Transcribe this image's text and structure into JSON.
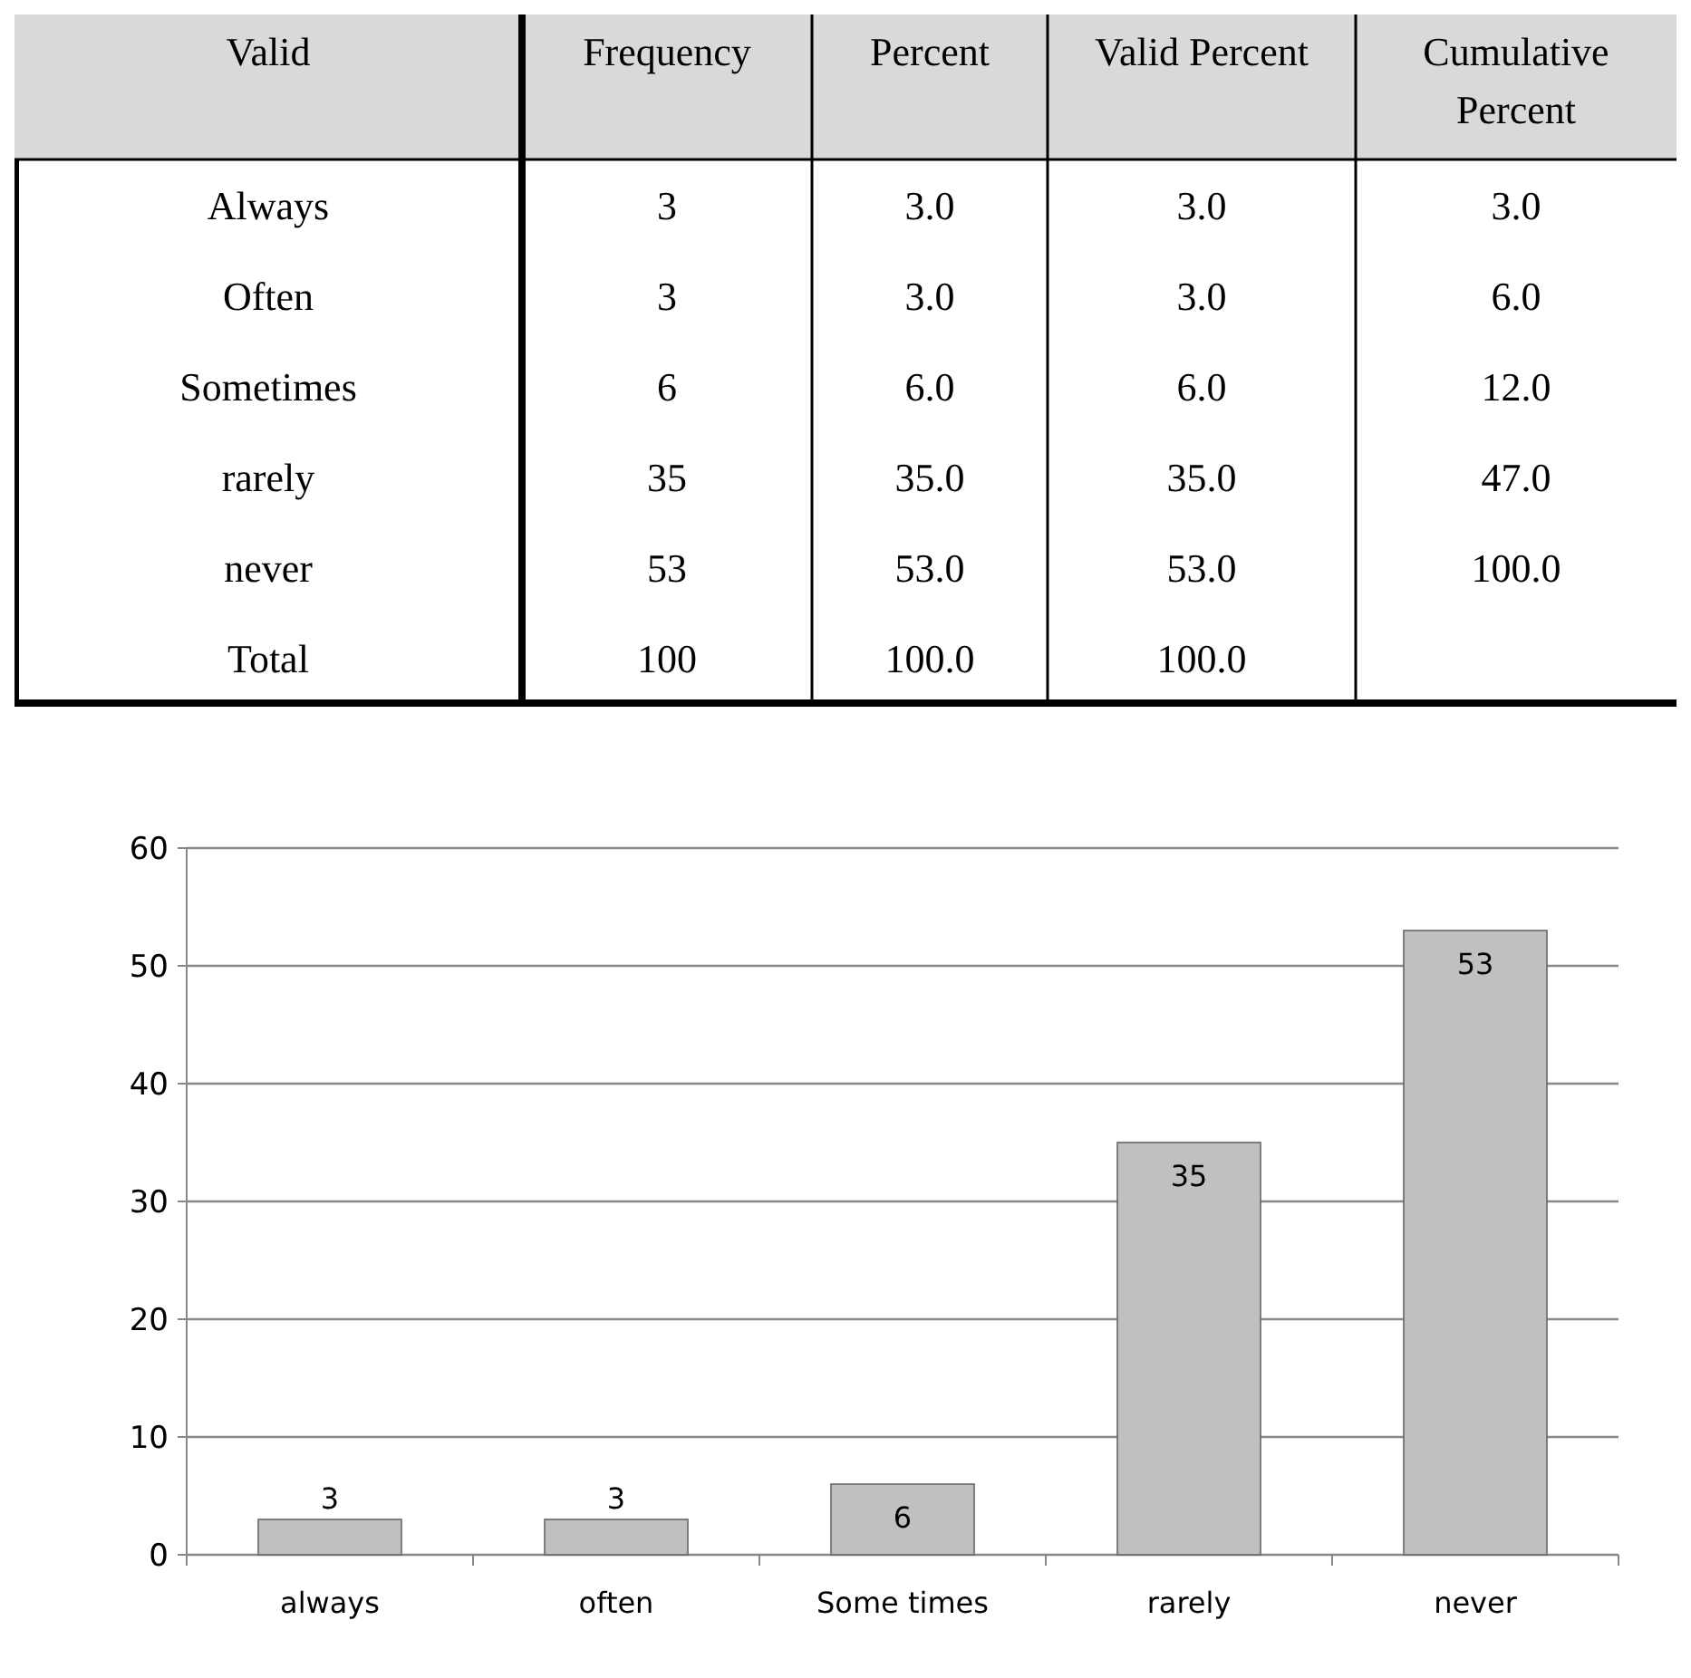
{
  "chart_data": [
    {
      "type": "other",
      "ylabel": "Valid",
      "categories": [
        "Frequency",
        "Percent",
        "Valid Percent",
        "Cumulative Percent"
      ],
      "y_categories": [
        "Always",
        "Often",
        "Sometimes",
        "rarely",
        "never",
        "Total"
      ],
      "cell_labels": [
        [
          "3",
          "3.0",
          "3.0",
          "3.0"
        ],
        [
          "3",
          "3.0",
          "3.0",
          "6.0"
        ],
        [
          "6",
          "6.0",
          "6.0",
          "12.0"
        ],
        [
          "35",
          "35.0",
          "35.0",
          "47.0"
        ],
        [
          "53",
          "53.0",
          "53.0",
          "100.0"
        ],
        [
          "100",
          "100.0",
          "100.0",
          null
        ]
      ]
    },
    {
      "type": "bar",
      "categories": [
        "always",
        "often",
        "Some times",
        "rarely",
        "never"
      ],
      "values": [
        3,
        3,
        6,
        35,
        53
      ],
      "color": "#c0c0c0",
      "ylim": [
        0,
        60
      ],
      "yticks": [
        0,
        10,
        20,
        30,
        40,
        50,
        60
      ],
      "grid": "y",
      "data_labels": true
    }
  ]
}
